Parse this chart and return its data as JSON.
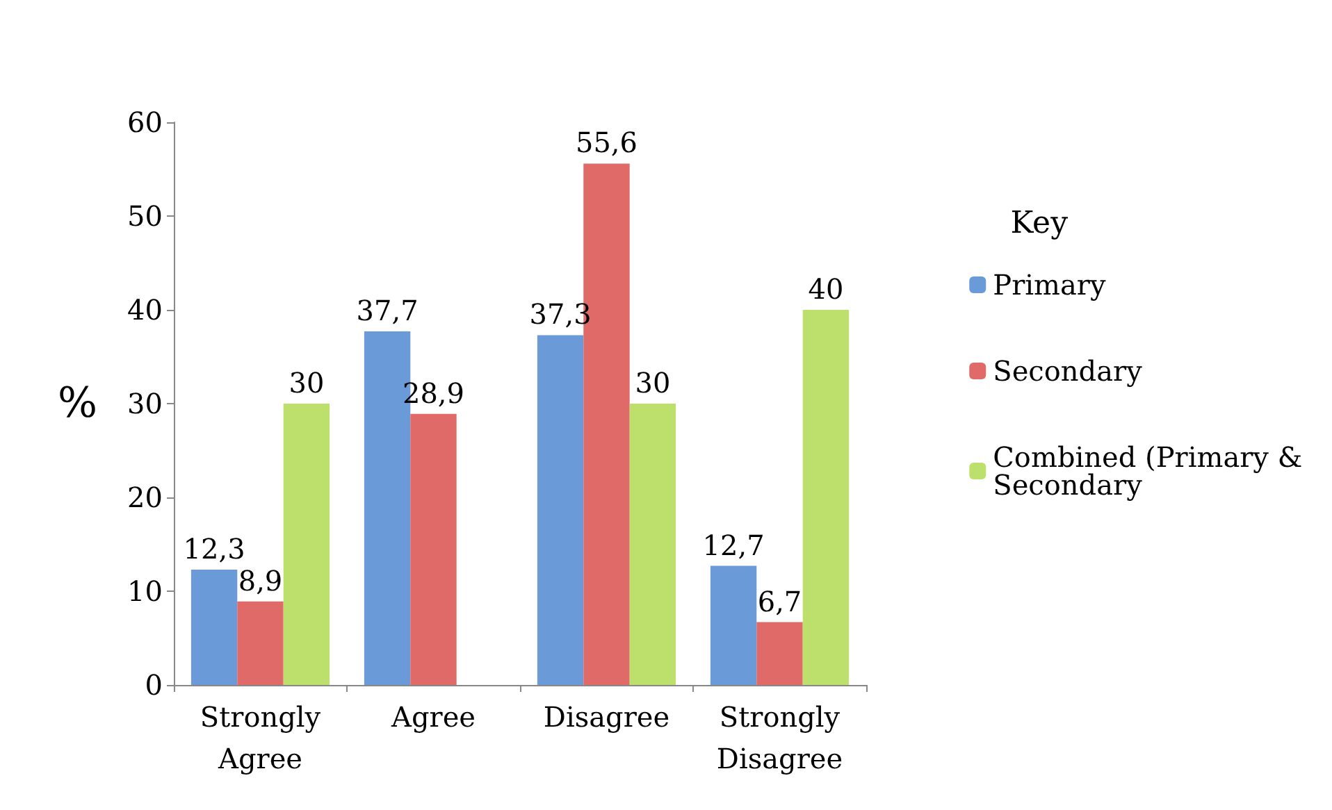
{
  "chart_data": {
    "type": "bar",
    "ylabel": "%",
    "legend_title": "Key",
    "legend": "right",
    "categories": [
      "Strongly Agree",
      "Agree",
      "Disagree",
      "Strongly Disagree"
    ],
    "series": [
      {
        "name": "Primary",
        "color": "#6a9ad8",
        "values": [
          12.3,
          37.7,
          37.3,
          12.7
        ],
        "value_labels": [
          "12,3",
          "37,7",
          "37,3",
          "12,7"
        ]
      },
      {
        "name": "Secondary",
        "color": "#e06a68",
        "values": [
          8.9,
          28.9,
          55.6,
          6.7
        ],
        "value_labels": [
          "8,9",
          "28,9",
          "55,6",
          "6,7"
        ]
      },
      {
        "name": "Combined (Primary & Secondary",
        "color": "#bde06c",
        "values": [
          30,
          null,
          30,
          40
        ],
        "value_labels": [
          "30",
          null,
          "30",
          "40"
        ]
      }
    ],
    "ylim": [
      0,
      60
    ],
    "yticks": [
      0,
      10,
      20,
      30,
      40,
      50,
      60
    ],
    "grid": false
  }
}
